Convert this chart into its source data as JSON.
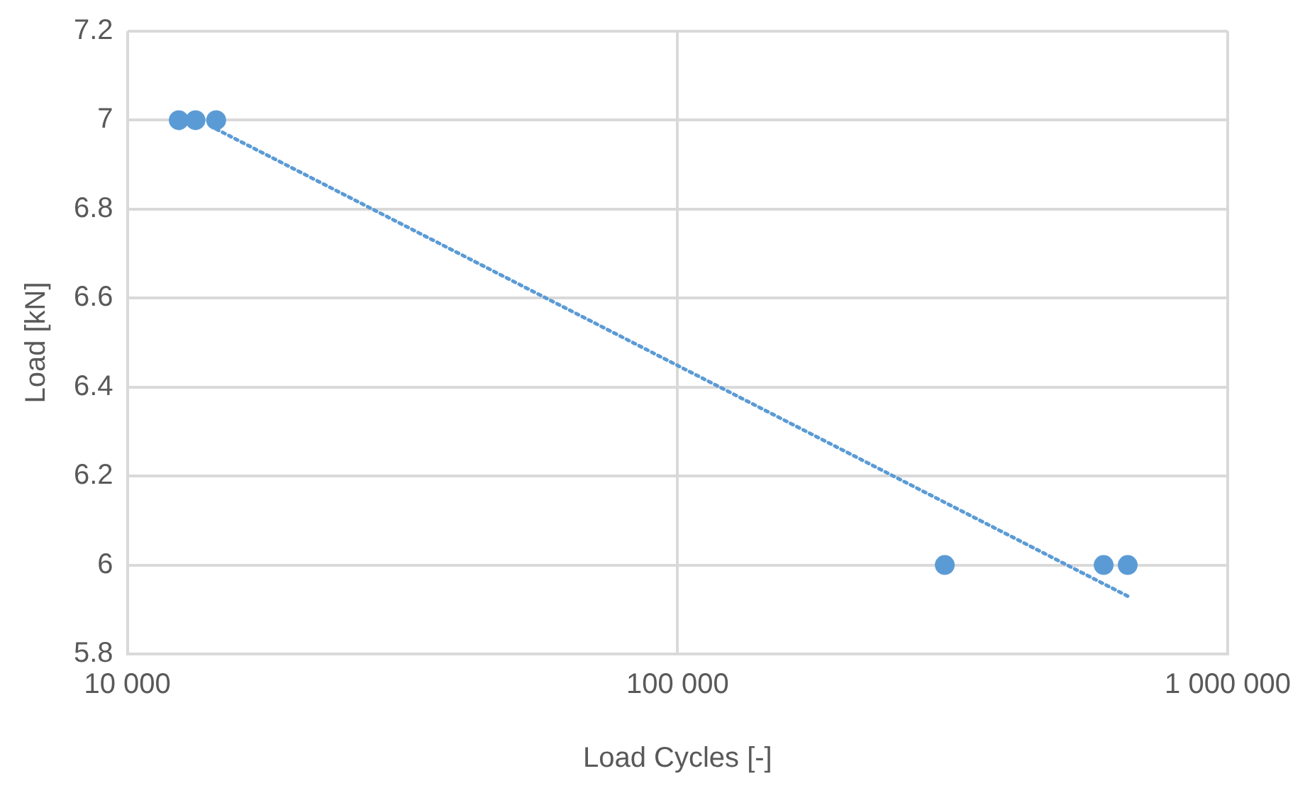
{
  "chart_data": {
    "type": "scatter",
    "xlabel": "Load Cycles [-]",
    "ylabel": "Load [kN]",
    "log": "x",
    "grid": true,
    "legend": false,
    "marker": "circle",
    "xlim": [
      10000,
      1000000
    ],
    "xticks": [
      {
        "value": 10000,
        "label": "10 000"
      },
      {
        "value": 100000,
        "label": "100 000"
      },
      {
        "value": 1000000,
        "label": "1 000 000"
      }
    ],
    "ylim": [
      5.8,
      7.2
    ],
    "yticks": [
      5.8,
      6,
      6.2,
      6.4,
      6.6,
      6.8,
      7,
      7.2
    ],
    "series": [
      {
        "type": "scatter",
        "color": "#5b9bd5",
        "x": [
          12400,
          13300,
          14500,
          306000,
          595000,
          658000
        ],
        "values": [
          7,
          7,
          7,
          6,
          6,
          6
        ]
      },
      {
        "type": "line",
        "color": "#5b9bd5",
        "line_style": "dotted",
        "marker": "none",
        "x": [
          14500,
          658000
        ],
        "values": [
          6.98,
          5.93
        ]
      }
    ]
  }
}
